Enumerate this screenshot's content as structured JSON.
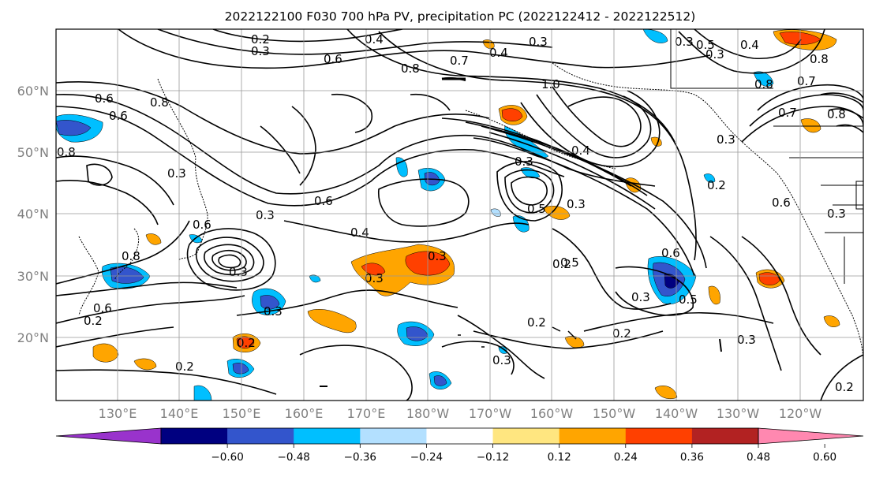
{
  "title": "2022122100 F030 700 hPa PV, precipitation PC (2022122412 - 2022122512)",
  "map": {
    "lon_ticks": [
      "130°E",
      "140°E",
      "150°E",
      "160°E",
      "170°E",
      "180°W",
      "170°W",
      "160°W",
      "150°W",
      "140°W",
      "130°W",
      "120°W"
    ],
    "lat_ticks": [
      "60°N",
      "50°N",
      "40°N",
      "30°N",
      "20°N"
    ],
    "contour_labels": [
      "0.2",
      "0.3",
      "0.4",
      "0.6",
      "0.3",
      "0.4",
      "0.7",
      "0.3",
      "0.8",
      "1.0",
      "0.8",
      "0.3",
      "0.6",
      "0.5",
      "0.4",
      "0.8",
      "0.7",
      "0.6",
      "0.8",
      "0.8",
      "0.3",
      "0.3",
      "0.6",
      "0.4",
      "0.3",
      "0.5",
      "0.3",
      "0.5",
      "0.4",
      "0.6",
      "0.6",
      "0.3",
      "0.8",
      "0.3",
      "0.3",
      "0.3",
      "0.5",
      "0.6",
      "0.3",
      "0.2",
      "0.2",
      "0.2",
      "0.2",
      "0.2",
      "0.3",
      "0.2",
      "0.2",
      "0.3",
      "0.2",
      "0.7",
      "0.3",
      "0.6",
      "0.3",
      "0.8"
    ],
    "shading_colors": {
      "neg_strong": "#9933cc",
      "neg_060": "#000080",
      "neg_048": "#3355cc",
      "neg_036": "#00bfff",
      "neg_024": "#b3e0ff",
      "pos_012": "#ffe680",
      "pos_024": "#ffa500",
      "pos_036": "#ff4000",
      "pos_048": "#b22222",
      "pos_060": "#ff88b0"
    }
  },
  "colorbar": {
    "ticks": [
      "−0.60",
      "−0.48",
      "−0.36",
      "−0.24",
      "−0.12",
      "0.12",
      "0.24",
      "0.36",
      "0.48",
      "0.60"
    ],
    "colors": [
      "#9933cc",
      "#000080",
      "#3355cc",
      "#00bfff",
      "#b3e0ff",
      "#ffffff",
      "#ffe680",
      "#ffa500",
      "#ff4000",
      "#b22222",
      "#ff88b0"
    ]
  }
}
